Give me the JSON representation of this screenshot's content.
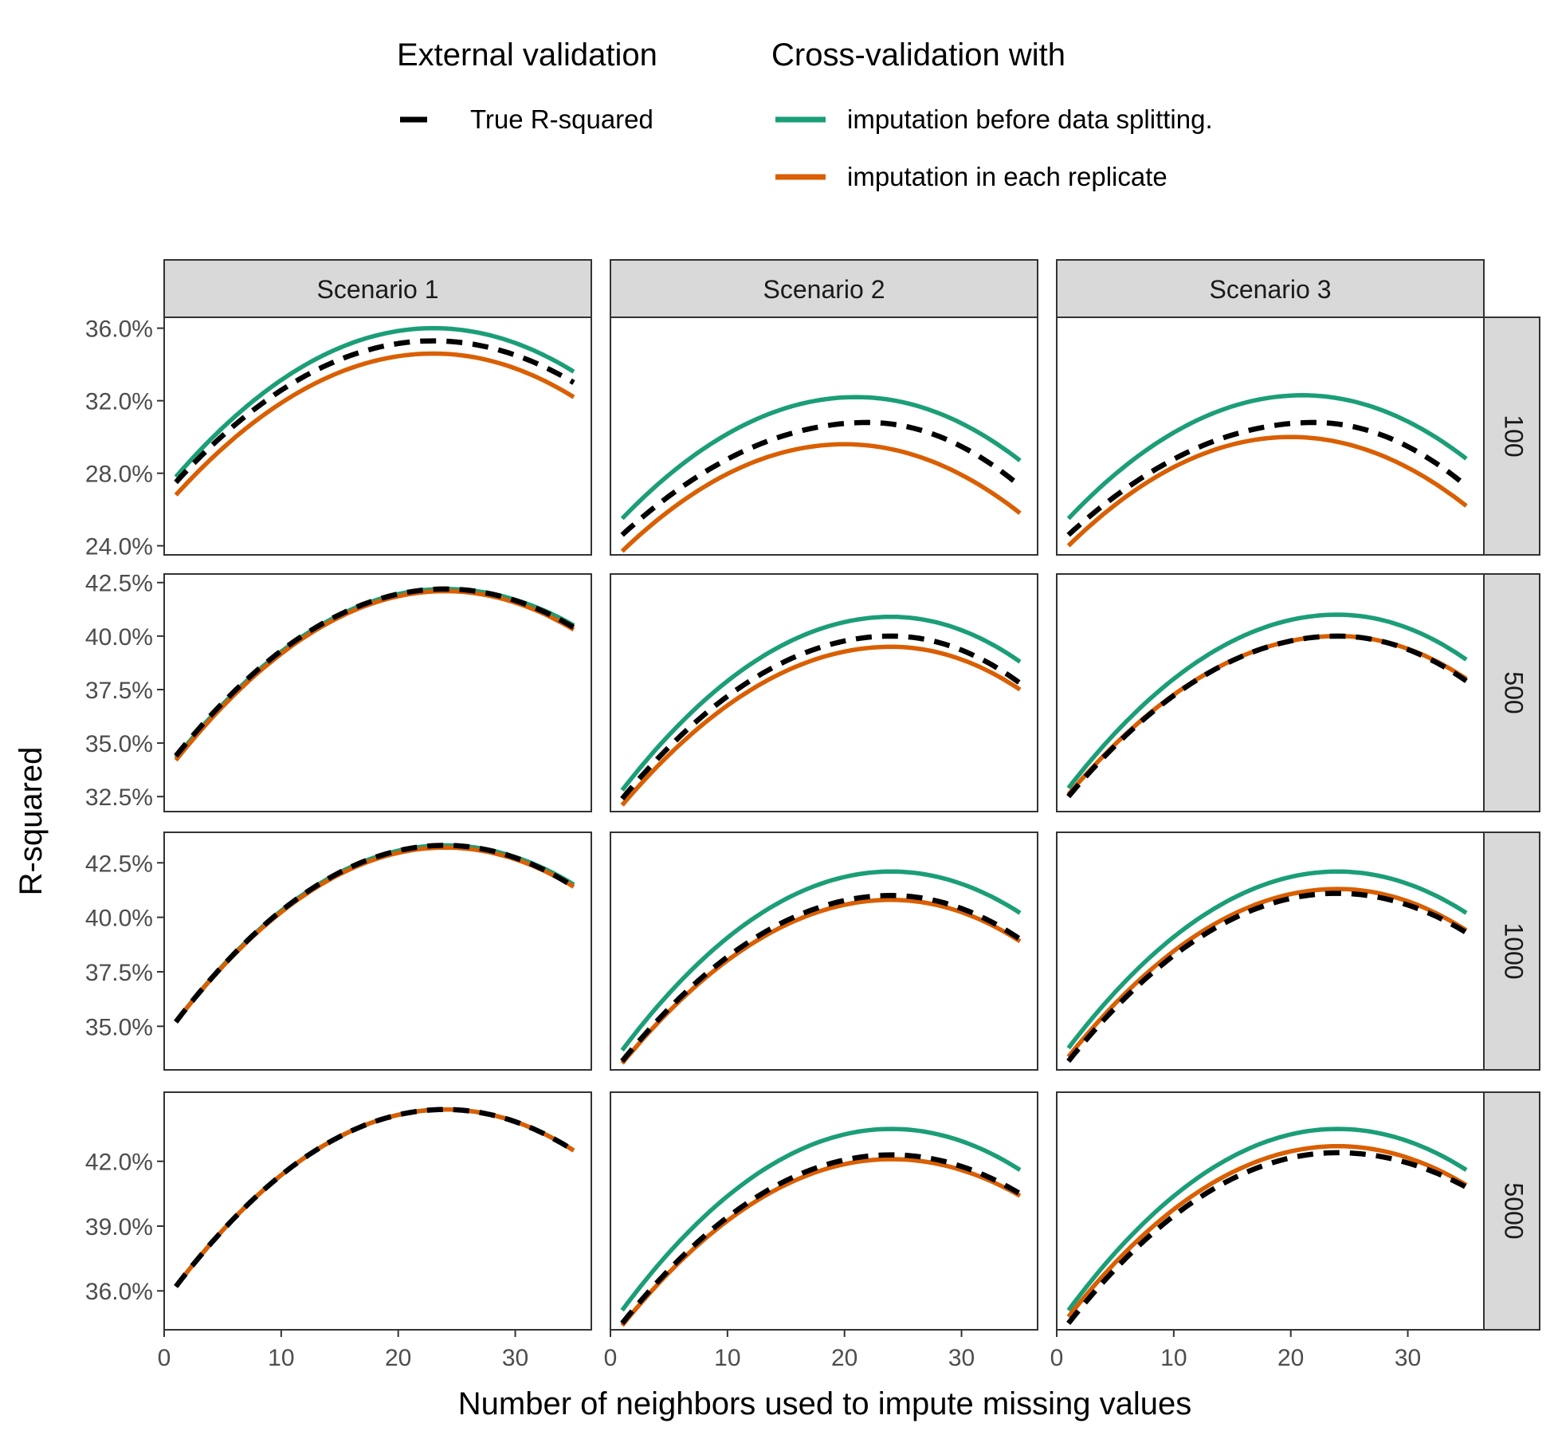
{
  "legend": {
    "external_title": "External validation",
    "cv_title": "Cross-validation with",
    "true_label": "True R-squared",
    "before_label": "imputation before data splitting.",
    "each_label": "imputation in each replicate"
  },
  "colors": {
    "true": "#000000",
    "before": "#1B9E77",
    "each": "#D95F02",
    "strip_fill": "#D9D9D9",
    "panel_border": "#333333",
    "tick_text": "#4D4D4D"
  },
  "chart_data": {
    "type": "line",
    "xlabel": "Number of neighbors used to impute missing values",
    "ylabel": "R-squared",
    "x_range": [
      1,
      35
    ],
    "x_ticks": [
      0,
      10,
      20,
      30
    ],
    "x_lim": [
      0,
      36.5
    ],
    "grid": false,
    "legend_position": "top",
    "columns": [
      "Scenario 1",
      "Scenario 2",
      "Scenario 3"
    ],
    "rows": [
      "100",
      "500",
      "1000",
      "5000"
    ],
    "y_axes": [
      {
        "lim": [
          23.5,
          36.6
        ],
        "ticks": [
          24.0,
          28.0,
          32.0,
          36.0
        ],
        "tick_labels": [
          "24.0%",
          "28.0%",
          "32.0%",
          "36.0%"
        ]
      },
      {
        "lim": [
          31.8,
          42.9
        ],
        "ticks": [
          32.5,
          35.0,
          37.5,
          40.0,
          42.5
        ],
        "tick_labels": [
          "32.5%",
          "35.0%",
          "37.5%",
          "40.0%",
          "42.5%"
        ]
      },
      {
        "lim": [
          33.0,
          43.9
        ],
        "ticks": [
          35.0,
          37.5,
          40.0,
          42.5
        ],
        "tick_labels": [
          "35.0%",
          "37.5%",
          "40.0%",
          "42.5%"
        ]
      },
      {
        "lim": [
          34.2,
          45.2
        ],
        "ticks": [
          36.0,
          39.0,
          42.0
        ],
        "tick_labels": [
          "36.0%",
          "39.0%",
          "42.0%"
        ]
      }
    ],
    "series_names": [
      "True R-squared",
      "imputation before data splitting.",
      "imputation in each replicate"
    ],
    "panels": [
      {
        "row": "100",
        "col": "Scenario 1",
        "true": {
          "start": 27.5,
          "peak": 35.3,
          "peak_x": 23,
          "end": 33.0
        },
        "before": {
          "start": 27.8,
          "peak": 36.0,
          "peak_x": 23,
          "end": 33.6
        },
        "each": {
          "start": 26.8,
          "peak": 34.6,
          "peak_x": 23,
          "end": 32.2
        }
      },
      {
        "row": "100",
        "col": "Scenario 2",
        "true": {
          "start": 24.6,
          "peak": 30.8,
          "peak_x": 22,
          "end": 27.3
        },
        "before": {
          "start": 25.5,
          "peak": 32.2,
          "peak_x": 21,
          "end": 28.7
        },
        "each": {
          "start": 23.7,
          "peak": 29.6,
          "peak_x": 20,
          "end": 25.8
        }
      },
      {
        "row": "100",
        "col": "Scenario 3",
        "true": {
          "start": 24.6,
          "peak": 30.8,
          "peak_x": 22,
          "end": 27.3
        },
        "before": {
          "start": 25.5,
          "peak": 32.3,
          "peak_x": 21,
          "end": 28.8
        },
        "each": {
          "start": 24.0,
          "peak": 30.0,
          "peak_x": 20,
          "end": 26.2
        }
      },
      {
        "row": "500",
        "col": "Scenario 1",
        "true": {
          "start": 34.4,
          "peak": 42.2,
          "peak_x": 24,
          "end": 40.4
        },
        "before": {
          "start": 34.3,
          "peak": 42.2,
          "peak_x": 24,
          "end": 40.5
        },
        "each": {
          "start": 34.2,
          "peak": 42.1,
          "peak_x": 24,
          "end": 40.3
        }
      },
      {
        "row": "500",
        "col": "Scenario 2",
        "true": {
          "start": 32.4,
          "peak": 40.0,
          "peak_x": 24,
          "end": 37.8
        },
        "before": {
          "start": 32.8,
          "peak": 40.9,
          "peak_x": 24,
          "end": 38.8
        },
        "each": {
          "start": 32.1,
          "peak": 39.5,
          "peak_x": 24,
          "end": 37.5
        }
      },
      {
        "row": "500",
        "col": "Scenario 3",
        "true": {
          "start": 32.5,
          "peak": 40.0,
          "peak_x": 24,
          "end": 37.9
        },
        "before": {
          "start": 32.9,
          "peak": 41.0,
          "peak_x": 24,
          "end": 38.9
        },
        "each": {
          "start": 32.6,
          "peak": 40.0,
          "peak_x": 24,
          "end": 38.0
        }
      },
      {
        "row": "1000",
        "col": "Scenario 1",
        "true": {
          "start": 35.2,
          "peak": 43.3,
          "peak_x": 24,
          "end": 41.4
        },
        "before": {
          "start": 35.2,
          "peak": 43.3,
          "peak_x": 24,
          "end": 41.5
        },
        "each": {
          "start": 35.2,
          "peak": 43.2,
          "peak_x": 24,
          "end": 41.4
        }
      },
      {
        "row": "1000",
        "col": "Scenario 2",
        "true": {
          "start": 33.4,
          "peak": 41.0,
          "peak_x": 24,
          "end": 39.0
        },
        "before": {
          "start": 33.9,
          "peak": 42.1,
          "peak_x": 24,
          "end": 40.2
        },
        "each": {
          "start": 33.3,
          "peak": 40.8,
          "peak_x": 24,
          "end": 38.9
        }
      },
      {
        "row": "1000",
        "col": "Scenario 3",
        "true": {
          "start": 33.4,
          "peak": 41.1,
          "peak_x": 24,
          "end": 39.3
        },
        "before": {
          "start": 34.0,
          "peak": 42.1,
          "peak_x": 24,
          "end": 40.2
        },
        "each": {
          "start": 33.6,
          "peak": 41.3,
          "peak_x": 24,
          "end": 39.4
        }
      },
      {
        "row": "5000",
        "col": "Scenario 1",
        "true": {
          "start": 36.2,
          "peak": 44.4,
          "peak_x": 24,
          "end": 42.5
        },
        "before": {
          "start": 36.2,
          "peak": 44.4,
          "peak_x": 24,
          "end": 42.5
        },
        "each": {
          "start": 36.2,
          "peak": 44.4,
          "peak_x": 24,
          "end": 42.5
        }
      },
      {
        "row": "5000",
        "col": "Scenario 2",
        "true": {
          "start": 34.5,
          "peak": 42.3,
          "peak_x": 24,
          "end": 40.5
        },
        "before": {
          "start": 35.1,
          "peak": 43.5,
          "peak_x": 24,
          "end": 41.6
        },
        "each": {
          "start": 34.4,
          "peak": 42.1,
          "peak_x": 24,
          "end": 40.4
        }
      },
      {
        "row": "5000",
        "col": "Scenario 3",
        "true": {
          "start": 34.5,
          "peak": 42.4,
          "peak_x": 24,
          "end": 40.8
        },
        "before": {
          "start": 35.1,
          "peak": 43.5,
          "peak_x": 24,
          "end": 41.6
        },
        "each": {
          "start": 34.8,
          "peak": 42.7,
          "peak_x": 24,
          "end": 40.9
        }
      }
    ]
  }
}
